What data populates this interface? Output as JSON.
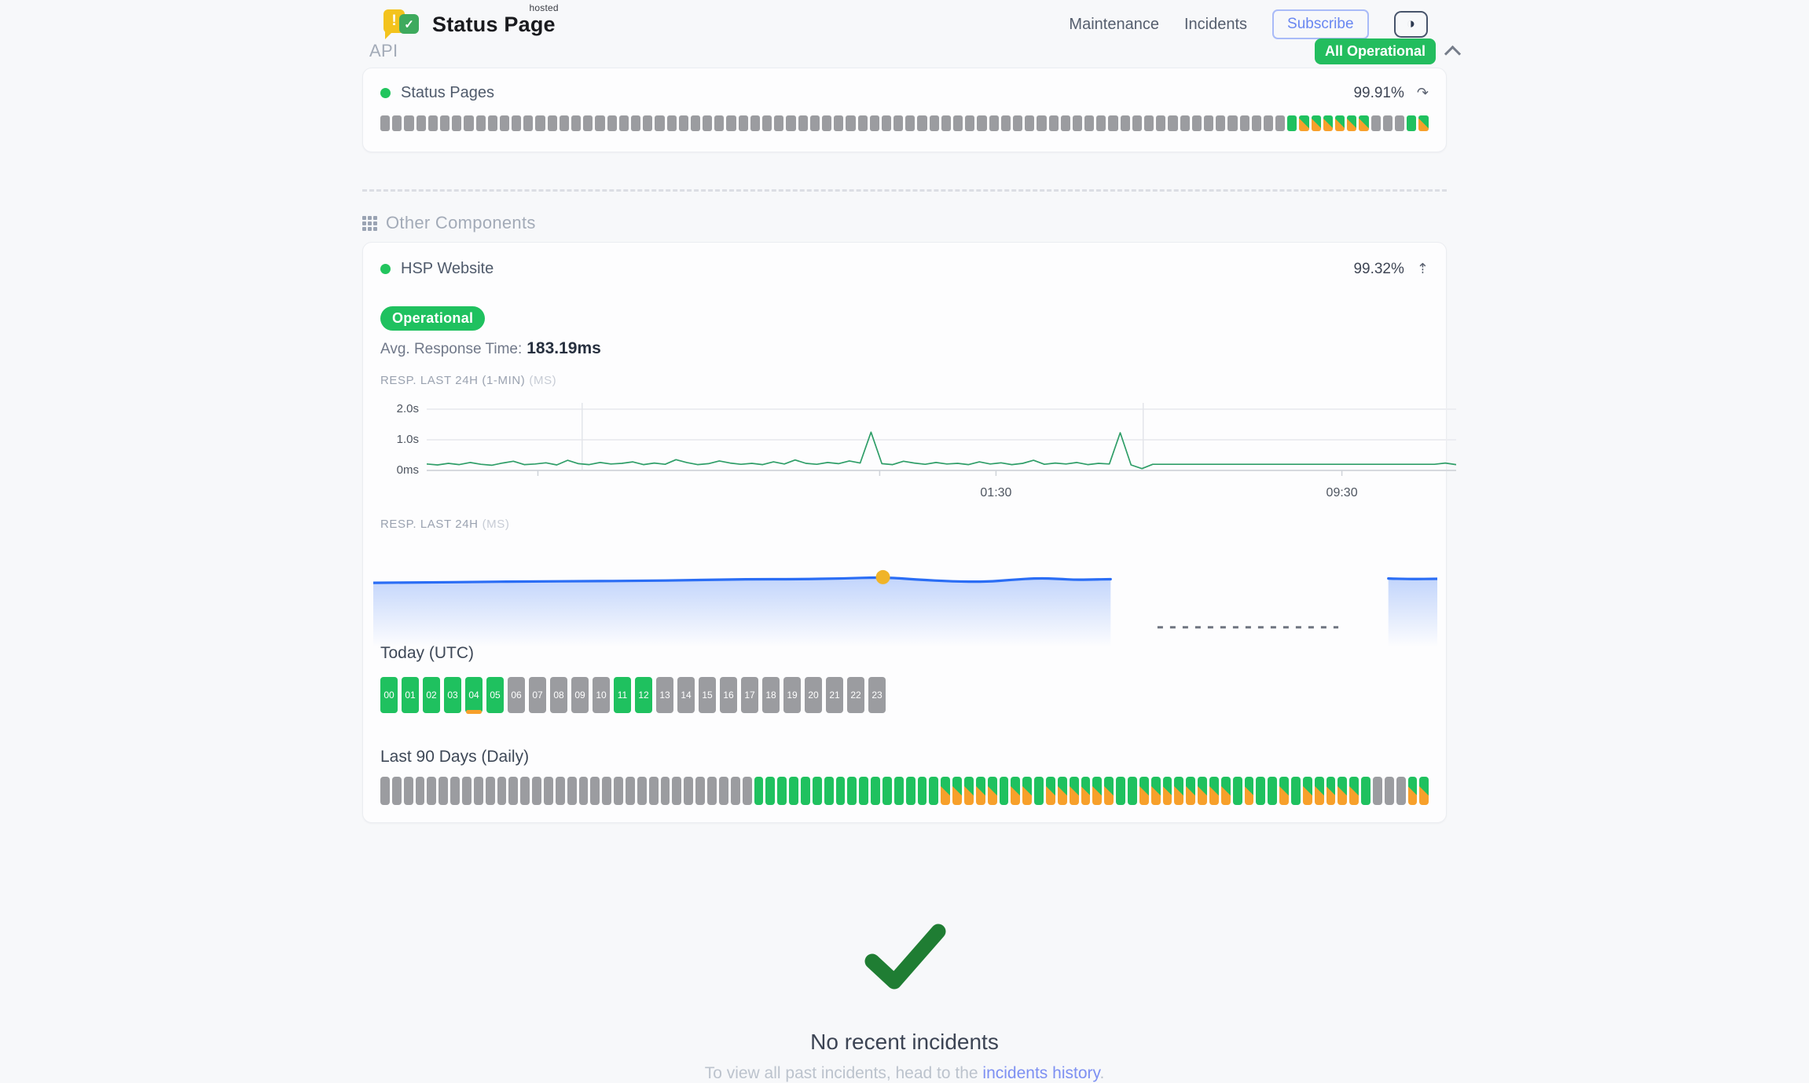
{
  "colors": {
    "green": "#1fc15f",
    "orange": "#f7a02b",
    "gray_bar": "#9b9ca0",
    "chart1_line": "#2f9e68",
    "chart2_line": "#2a6df5",
    "marker_yellow": "#f0b429",
    "badge_green": "#23bd5e",
    "link_blue": "#7d90f2",
    "check_green": "#1f7d33"
  },
  "header": {
    "brand": {
      "name": "Status Page",
      "superscript": "hosted"
    },
    "nav": [
      {
        "label": "Maintenance"
      },
      {
        "label": "Incidents"
      }
    ],
    "subscribe_label": "Subscribe",
    "overall_status": {
      "label": "All Operational"
    }
  },
  "icons": {
    "theme_toggle": "◑",
    "refresh": "↷",
    "collapse_up": "⇡",
    "logo_exclamation": "!",
    "logo_check": "✓"
  },
  "api_section": {
    "title": "API",
    "component": {
      "name": "Status Pages",
      "uptime_pct": "99.91%",
      "bars_runs": [
        [
          "n",
          76
        ],
        [
          "u",
          1
        ],
        [
          "d",
          6
        ],
        [
          "n",
          3
        ],
        [
          "u",
          1
        ],
        [
          "d",
          1
        ]
      ]
    }
  },
  "other_section": {
    "title": "Other Components",
    "component": {
      "name": "HSP Website",
      "uptime_pct": "99.32%",
      "status_badge": "Operational",
      "avg_label": "Avg. Response Time:",
      "avg_value": "183.19ms"
    }
  },
  "chart_data": [
    {
      "id": "resp-last-24h-1min",
      "type": "line",
      "title": "RESP. LAST 24H (1-MIN)",
      "unit": "(MS)",
      "color": "#2f9e68",
      "ylim": [
        0,
        2000
      ],
      "yticks": [
        {
          "label": "0ms",
          "value": 0
        },
        {
          "label": "1.0s",
          "value": 1000
        },
        {
          "label": "2.0s",
          "value": 2000
        }
      ],
      "xticks": [
        {
          "label": "01:30",
          "pos": 0.553
        },
        {
          "label": "09:30",
          "pos": 0.889
        }
      ],
      "gridlines_x": [
        0.151,
        0.696
      ],
      "ticks": [
        0.108,
        0.44,
        0.553,
        0.889
      ],
      "values_ms": [
        210,
        180,
        230,
        190,
        260,
        200,
        170,
        240,
        300,
        190,
        210,
        250,
        180,
        330,
        220,
        190,
        260,
        210,
        230,
        280,
        190,
        240,
        200,
        350,
        260,
        190,
        220,
        310,
        240,
        200,
        230,
        190,
        280,
        210,
        340,
        230,
        200,
        260,
        220,
        310,
        240,
        1250,
        220,
        190,
        300,
        240,
        200,
        260,
        210,
        230,
        190,
        280,
        210,
        250,
        190,
        230,
        330,
        200,
        240,
        210,
        260,
        190,
        230,
        210,
        1230,
        180,
        60,
        200,
        200,
        200,
        200,
        200,
        200,
        200,
        200,
        200,
        200,
        200,
        200,
        200,
        200,
        200,
        200,
        200,
        200,
        200,
        200,
        200,
        200,
        200,
        200,
        200,
        200,
        200,
        240,
        190
      ]
    },
    {
      "id": "resp-last-24h",
      "type": "area",
      "title": "RESP. LAST 24H",
      "unit": "(MS)",
      "color": "#2a6df5",
      "ylim": [
        0,
        330
      ],
      "segments": [
        {
          "x": [
            0,
            0.05,
            0.1,
            0.15,
            0.2,
            0.25,
            0.3,
            0.35,
            0.4,
            0.44,
            0.479,
            0.51,
            0.545,
            0.575,
            0.6,
            0.625,
            0.644,
            0.66,
            0.675,
            0.693
          ],
          "v": [
            193,
            194,
            196,
            197,
            198,
            199,
            201,
            204,
            204,
            206,
            210,
            203,
            197,
            196,
            202,
            207,
            205,
            202,
            203,
            204
          ]
        },
        {
          "x": [
            0.954,
            0.975,
            1.0
          ],
          "v": [
            206,
            204,
            205
          ]
        }
      ],
      "marker": {
        "x": 0.479,
        "v": 210,
        "color": "#f0b429"
      },
      "gap_dash": {
        "x1": 0.737,
        "x2": 0.907,
        "y_frac": 0.82
      }
    }
  ],
  "today": {
    "title": "Today (UTC)",
    "labels": [
      "00",
      "01",
      "02",
      "03",
      "04",
      "05",
      "06",
      "07",
      "08",
      "09",
      "10",
      "11",
      "12",
      "13",
      "14",
      "15",
      "16",
      "17",
      "18",
      "19",
      "20",
      "21",
      "22",
      "23"
    ],
    "pattern_runs": [
      [
        "u",
        6
      ],
      [
        "n",
        5
      ],
      [
        "u",
        2
      ],
      [
        "n",
        11
      ]
    ],
    "marker_index": 4
  },
  "last90": {
    "title": "Last 90 Days (Daily)",
    "days_runs": [
      [
        "n",
        32
      ],
      [
        "u",
        16
      ],
      [
        "d",
        5
      ],
      [
        "u",
        1
      ],
      [
        "d",
        2
      ],
      [
        "u",
        1
      ],
      [
        "d",
        6
      ],
      [
        "u",
        2
      ],
      [
        "d",
        8
      ],
      [
        "u",
        1
      ],
      [
        "d",
        1
      ],
      [
        "u",
        2
      ],
      [
        "d",
        1
      ],
      [
        "u",
        1
      ],
      [
        "d",
        5
      ],
      [
        "u",
        1
      ],
      [
        "n",
        3
      ],
      [
        "d",
        2
      ]
    ]
  },
  "footer": {
    "no_incidents": "No recent incidents",
    "history_prefix": "To view all past incidents, head to the ",
    "history_link": "incidents history",
    "history_suffix": "."
  }
}
